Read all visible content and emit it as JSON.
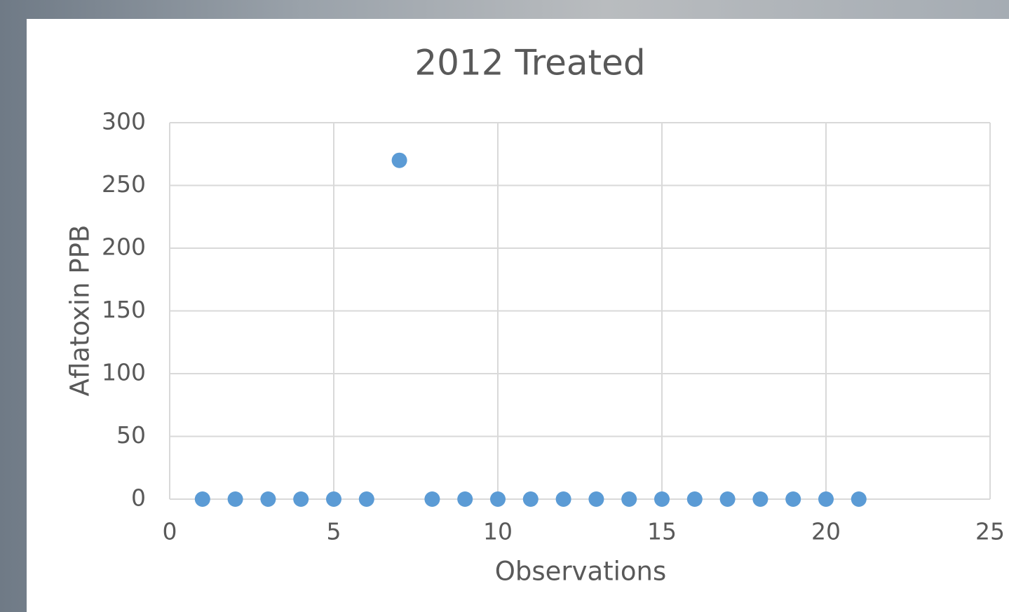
{
  "chart_data": {
    "type": "scatter",
    "title": "2012 Treated",
    "x_label": "Observations",
    "y_label": "Aflatoxin PPB",
    "series": [
      {
        "color": "#5b9bd5",
        "x": [
          1,
          2,
          3,
          4,
          5,
          6,
          7,
          8,
          9,
          10,
          11,
          12,
          13,
          14,
          15,
          16,
          17,
          18,
          19,
          20,
          21
        ],
        "values": [
          0,
          0,
          0,
          0,
          0,
          0,
          270,
          0,
          0,
          0,
          0,
          0,
          0,
          0,
          0,
          0,
          0,
          0,
          0,
          0,
          0
        ]
      }
    ],
    "xlim": [
      0,
      25
    ],
    "xticks": [
      0,
      5,
      10,
      15,
      20,
      25
    ],
    "ylim": [
      0,
      300
    ],
    "yticks": [
      0,
      50,
      100,
      150,
      200,
      250,
      300
    ],
    "grid": true
  }
}
